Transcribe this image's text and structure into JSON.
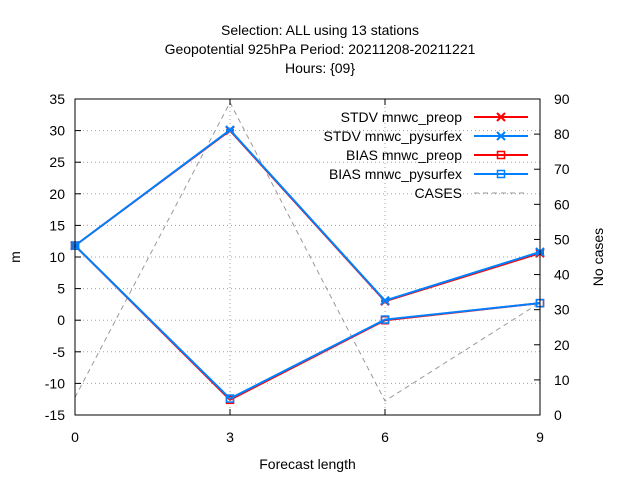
{
  "chart_data": {
    "type": "line",
    "title_lines": [
      "Selection: ALL using    13 stations",
      "Geopotential 925hPa   Period: 20211208-20211221",
      "Hours: {09}"
    ],
    "xlabel": "Forecast length",
    "ylabel": "m",
    "y2label": "No cases",
    "x": [
      0,
      3,
      6,
      9
    ],
    "xlim": [
      0,
      9
    ],
    "ylim": [
      -15,
      35
    ],
    "y2lim": [
      0,
      90
    ],
    "xticks": [
      0,
      3,
      6,
      9
    ],
    "yticks": [
      -15,
      -10,
      -5,
      0,
      5,
      10,
      15,
      20,
      25,
      30,
      35
    ],
    "y2ticks": [
      0,
      10,
      20,
      30,
      40,
      50,
      60,
      70,
      80,
      90
    ],
    "grid": true,
    "legend_position": "top-right",
    "series": [
      {
        "name": "STDV mnwc_preop",
        "color": "#ff0000",
        "marker": "star",
        "dash": "",
        "axis": "y1",
        "values": [
          11.8,
          30.0,
          3.0,
          10.6
        ]
      },
      {
        "name": "STDV mnwc_pysurfex",
        "color": "#0080ff",
        "marker": "star",
        "dash": "",
        "axis": "y1",
        "values": [
          11.8,
          30.1,
          3.1,
          10.8
        ]
      },
      {
        "name": "BIAS mnwc_preop",
        "color": "#ff0000",
        "marker": "square",
        "dash": "",
        "axis": "y1",
        "values": [
          11.8,
          -12.6,
          0.0,
          2.7
        ]
      },
      {
        "name": "BIAS mnwc_pysurfex",
        "color": "#0080ff",
        "marker": "square",
        "dash": "",
        "axis": "y1",
        "values": [
          11.8,
          -12.4,
          0.1,
          2.7
        ]
      },
      {
        "name": "CASES",
        "color": "#999999",
        "marker": "none",
        "dash": "5,4",
        "axis": "y2",
        "values": [
          5,
          89,
          4,
          32
        ]
      }
    ]
  }
}
